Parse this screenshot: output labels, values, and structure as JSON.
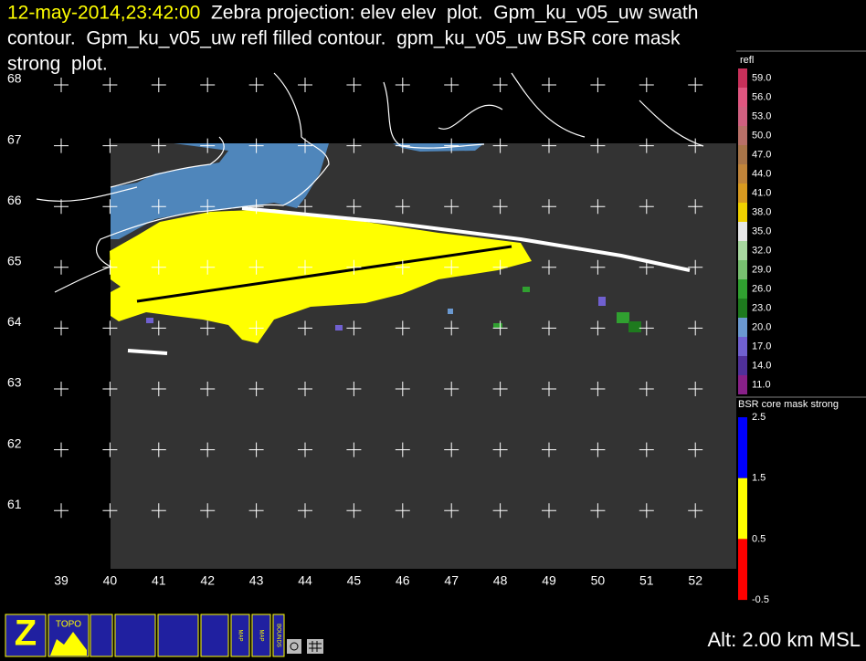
{
  "title": {
    "time": "12-may-2014,23:42:00",
    "lines": [
      "  Zebra projection: elev elev  plot.  Gpm_ku_v05_uw swath",
      "contour.  Gpm_ku_v05_uw refl filled contour.  gpm_ku_v05_uw BSR core mask",
      "strong  plot."
    ]
  },
  "lon_labels": [
    "39",
    "40",
    "41",
    "42",
    "43",
    "44",
    "45",
    "46",
    "47",
    "48",
    "49",
    "50",
    "51",
    "52"
  ],
  "lat_labels": [
    "68",
    "67",
    "66",
    "65",
    "64",
    "63",
    "62",
    "61"
  ],
  "legend_refl": {
    "title": "refl",
    "labels": [
      "59.0",
      "56.0",
      "53.0",
      "50.0",
      "47.0",
      "44.0",
      "41.0",
      "38.0",
      "35.0",
      "32.0",
      "29.0",
      "26.0",
      "23.0",
      "20.0",
      "17.0",
      "14.0",
      "11.0"
    ],
    "colors": [
      "#c8305a",
      "#e05680",
      "#d06080",
      "#b87068",
      "#a87448",
      "#c0843a",
      "#d89a20",
      "#f0d000",
      "#e6e6e6",
      "#a8d8a0",
      "#78c070",
      "#30a030",
      "#1e7a1e",
      "#6a98d0",
      "#7060d0",
      "#50309a",
      "#882088"
    ]
  },
  "legend_bsr": {
    "title": "BSR core mask strong",
    "labels": [
      "2.5",
      "1.5",
      "0.5",
      "-0.5"
    ],
    "colors": [
      "#0000ff",
      "#ffff00",
      "#ff0000"
    ]
  },
  "icons": [
    "TOPO",
    "MAP",
    "MAP",
    "BOUNDS"
  ],
  "status": "Alt: 2.00 km MSL"
}
